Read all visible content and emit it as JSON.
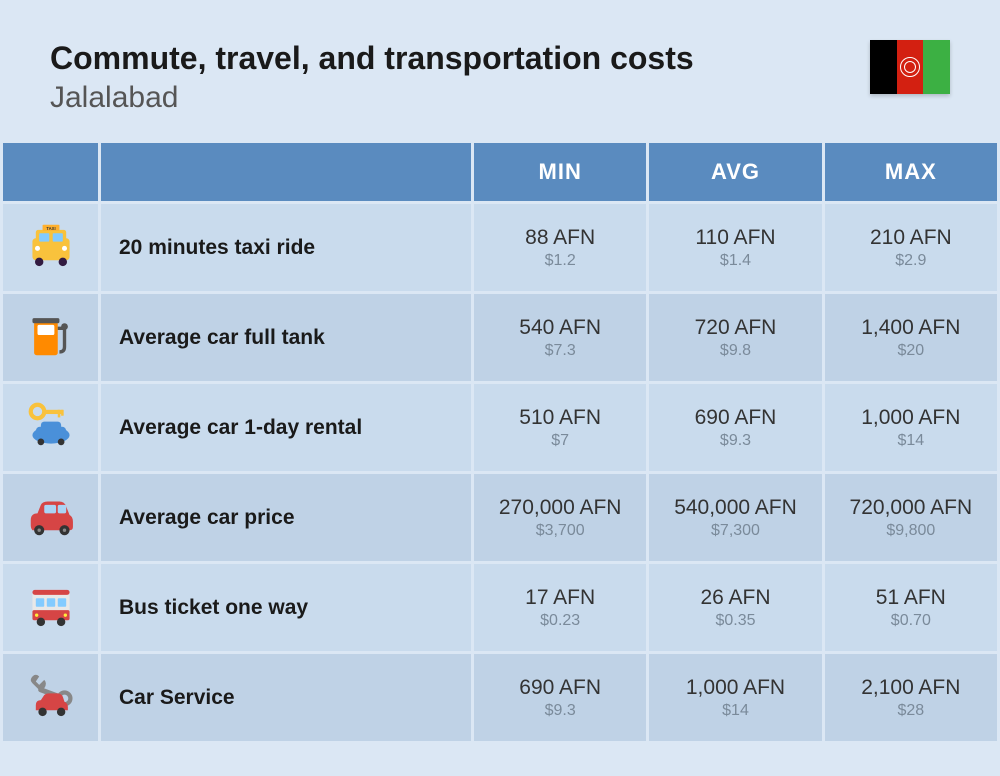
{
  "header": {
    "title": "Commute, travel, and transportation costs",
    "subtitle": "Jalalabad"
  },
  "flag": {
    "stripes": [
      "#000000",
      "#d32011",
      "#3cb043"
    ],
    "emblem_color": "#ffffff"
  },
  "table": {
    "columns": [
      "MIN",
      "AVG",
      "MAX"
    ],
    "header_bg": "#5a8bbf",
    "header_color": "#ffffff",
    "row_odd_bg": "#c9dbed",
    "row_even_bg": "#bfd2e6",
    "value_main_color": "#333333",
    "value_sub_color": "#7a8a9a",
    "label_color": "#1a1a1a",
    "rows": [
      {
        "icon": "taxi",
        "label": "20 minutes taxi ride",
        "min_main": "88 AFN",
        "min_sub": "$1.2",
        "avg_main": "110 AFN",
        "avg_sub": "$1.4",
        "max_main": "210 AFN",
        "max_sub": "$2.9"
      },
      {
        "icon": "fuel",
        "label": "Average car full tank",
        "min_main": "540 AFN",
        "min_sub": "$7.3",
        "avg_main": "720 AFN",
        "avg_sub": "$9.8",
        "max_main": "1,400 AFN",
        "max_sub": "$20"
      },
      {
        "icon": "car-key",
        "label": "Average car 1-day rental",
        "min_main": "510 AFN",
        "min_sub": "$7",
        "avg_main": "690 AFN",
        "avg_sub": "$9.3",
        "max_main": "1,000 AFN",
        "max_sub": "$14"
      },
      {
        "icon": "car",
        "label": "Average car price",
        "min_main": "270,000 AFN",
        "min_sub": "$3,700",
        "avg_main": "540,000 AFN",
        "avg_sub": "$7,300",
        "max_main": "720,000 AFN",
        "max_sub": "$9,800"
      },
      {
        "icon": "bus",
        "label": "Bus ticket one way",
        "min_main": "17 AFN",
        "min_sub": "$0.23",
        "avg_main": "26 AFN",
        "avg_sub": "$0.35",
        "max_main": "51 AFN",
        "max_sub": "$0.70"
      },
      {
        "icon": "service",
        "label": "Car Service",
        "min_main": "690 AFN",
        "min_sub": "$9.3",
        "avg_main": "1,000 AFN",
        "avg_sub": "$14",
        "max_main": "2,100 AFN",
        "max_sub": "$28"
      }
    ]
  },
  "background_color": "#dbe7f4"
}
